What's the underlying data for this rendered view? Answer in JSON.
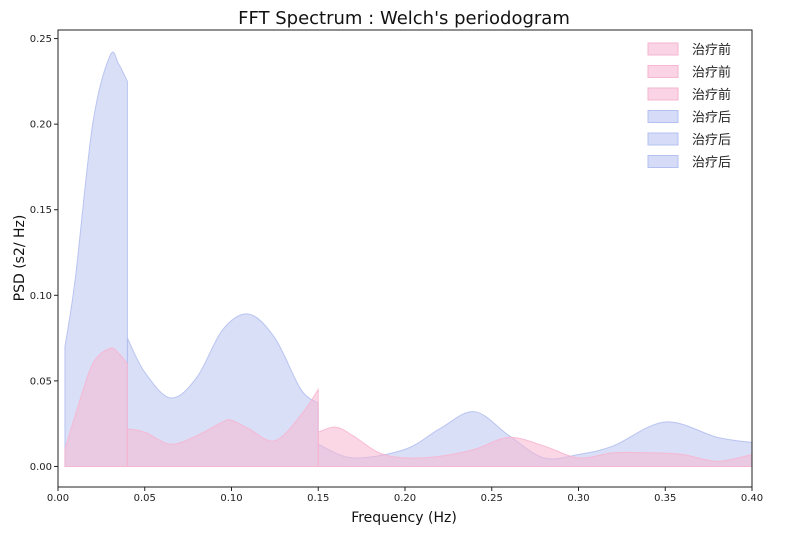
{
  "chart_data": {
    "type": "area",
    "title": "FFT Spectrum : Welch's periodogram",
    "xlabel": "Frequency (Hz)",
    "ylabel": "PSD (s2/ Hz)",
    "xlim": [
      0.0,
      0.4
    ],
    "ylim": [
      -0.012,
      0.255
    ],
    "xticks": [
      "0.00",
      "0.05",
      "0.10",
      "0.15",
      "0.20",
      "0.25",
      "0.30",
      "0.35",
      "0.40"
    ],
    "xtick_values": [
      0.0,
      0.05,
      0.1,
      0.15,
      0.2,
      0.25,
      0.3,
      0.35,
      0.4
    ],
    "yticks": [
      "0.00",
      "0.05",
      "0.10",
      "0.15",
      "0.20",
      "0.25"
    ],
    "ytick_values": [
      0.0,
      0.05,
      0.1,
      0.15,
      0.2,
      0.25
    ],
    "grid": false,
    "legend_position": "top-right",
    "colors": {
      "before": "#f7b6d2",
      "after": "#b4c0f0"
    },
    "legend": [
      {
        "label": "治疗前",
        "group": "before"
      },
      {
        "label": "治疗前",
        "group": "before"
      },
      {
        "label": "治疗前",
        "group": "before"
      },
      {
        "label": "治疗后",
        "group": "after"
      },
      {
        "label": "治疗后",
        "group": "after"
      },
      {
        "label": "治疗后",
        "group": "after"
      }
    ],
    "series": [
      {
        "name": "治疗前",
        "group": "before",
        "band": "VLF",
        "x": [
          0.004,
          0.01,
          0.02,
          0.03,
          0.035,
          0.04
        ],
        "y": [
          0.01,
          0.03,
          0.06,
          0.069,
          0.066,
          0.06
        ]
      },
      {
        "name": "治疗前",
        "group": "before",
        "band": "LF",
        "x": [
          0.04,
          0.05,
          0.065,
          0.08,
          0.095,
          0.1,
          0.11,
          0.125,
          0.14,
          0.15
        ],
        "y": [
          0.022,
          0.02,
          0.013,
          0.018,
          0.026,
          0.027,
          0.022,
          0.015,
          0.03,
          0.045
        ]
      },
      {
        "name": "治疗前",
        "group": "before",
        "band": "HF",
        "x": [
          0.15,
          0.16,
          0.17,
          0.185,
          0.2,
          0.22,
          0.24,
          0.26,
          0.28,
          0.3,
          0.32,
          0.34,
          0.36,
          0.38,
          0.4
        ],
        "y": [
          0.02,
          0.023,
          0.018,
          0.008,
          0.005,
          0.006,
          0.01,
          0.017,
          0.012,
          0.005,
          0.008,
          0.008,
          0.007,
          0.003,
          0.007
        ]
      },
      {
        "name": "治疗后",
        "group": "after",
        "band": "VLF",
        "x": [
          0.004,
          0.01,
          0.02,
          0.03,
          0.035,
          0.04
        ],
        "y": [
          0.07,
          0.11,
          0.2,
          0.24,
          0.235,
          0.225
        ]
      },
      {
        "name": "治疗后",
        "group": "after",
        "band": "LF",
        "x": [
          0.04,
          0.05,
          0.065,
          0.08,
          0.095,
          0.11,
          0.125,
          0.14,
          0.15
        ],
        "y": [
          0.075,
          0.055,
          0.04,
          0.052,
          0.08,
          0.089,
          0.075,
          0.045,
          0.037
        ]
      },
      {
        "name": "治疗后",
        "group": "after",
        "band": "HF",
        "x": [
          0.15,
          0.17,
          0.2,
          0.22,
          0.24,
          0.26,
          0.28,
          0.3,
          0.32,
          0.35,
          0.38,
          0.4
        ],
        "y": [
          0.013,
          0.005,
          0.01,
          0.022,
          0.032,
          0.018,
          0.005,
          0.007,
          0.012,
          0.026,
          0.017,
          0.014
        ]
      }
    ]
  }
}
